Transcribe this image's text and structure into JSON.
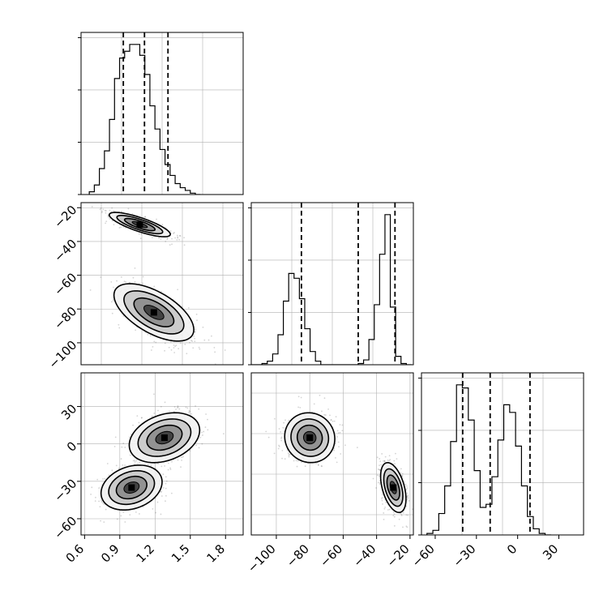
{
  "chart_data": [
    {
      "type": "histogram",
      "panel": "row0-col0",
      "x_param": 1,
      "xlim": [
        0.57,
        1.95
      ],
      "quantiles": [
        0.93,
        1.11,
        1.31
      ],
      "bin_start": 0.64,
      "bin_width": 0.043,
      "counts": [
        2,
        7,
        19,
        32,
        55,
        85,
        100,
        105,
        110,
        110,
        102,
        88,
        65,
        48,
        33,
        22,
        14,
        8,
        5,
        3,
        1,
        0
      ],
      "xticks": [],
      "yticks": []
    },
    {
      "type": "histogram",
      "panel": "row1-col1",
      "x_param": 2,
      "xlim": [
        -115,
        -18
      ],
      "quantiles": [
        -85,
        -51,
        -29
      ],
      "bin_start": -115,
      "bin_width": 3.2,
      "counts": [
        0,
        0,
        1,
        3,
        9,
        25,
        53,
        76,
        72,
        55,
        30,
        11,
        3,
        0,
        0,
        0,
        0,
        0,
        0,
        0,
        1,
        4,
        21,
        50,
        92,
        125,
        48,
        7,
        1,
        0
      ],
      "xticks": [],
      "yticks": []
    },
    {
      "type": "histogram",
      "panel": "row2-col2",
      "x_param": 3,
      "xlim": [
        -70,
        48
      ],
      "quantiles": [
        -40,
        -20,
        9
      ],
      "bin_start": -66,
      "bin_width": 4.3,
      "counts": [
        1,
        3,
        14,
        32,
        61,
        98,
        96,
        75,
        42,
        18,
        20,
        38,
        62,
        85,
        80,
        58,
        32,
        12,
        4,
        1,
        0
      ],
      "xticks": [
        -60,
        -30,
        0,
        30
      ],
      "yticks": []
    },
    {
      "type": "scatter-density",
      "panel": "row1-col0",
      "x_param": 1,
      "y_param": 2,
      "xlim": [
        0.57,
        1.95
      ],
      "ylim": [
        -113,
        -17
      ],
      "xticks": [],
      "yticks": [
        -20,
        -40,
        -60,
        -80,
        -100
      ],
      "modes": [
        {
          "mx": 1.07,
          "my": -30,
          "sx": 0.13,
          "sy": 3.6,
          "rho": -0.8,
          "weight": 0.5
        },
        {
          "mx": 1.19,
          "my": -82,
          "sx": 0.17,
          "sy": 8.5,
          "rho": -0.6,
          "weight": 0.5
        }
      ]
    },
    {
      "type": "scatter-density",
      "panel": "row2-col0",
      "x_param": 1,
      "y_param": 3,
      "xlim": [
        0.57,
        1.95
      ],
      "ylim": [
        -73,
        57
      ],
      "xticks": [
        0.6,
        0.9,
        1.2,
        1.5,
        1.8
      ],
      "yticks": [
        30,
        0,
        -30,
        -60
      ],
      "modes": [
        {
          "mx": 1.0,
          "my": -35,
          "sx": 0.13,
          "sy": 9,
          "rho": 0.25,
          "weight": 0.5
        },
        {
          "mx": 1.28,
          "my": 5,
          "sx": 0.15,
          "sy": 10,
          "rho": 0.3,
          "weight": 0.5
        }
      ]
    },
    {
      "type": "scatter-density",
      "panel": "row2-col1",
      "x_param": 2,
      "y_param": 3,
      "xlim": [
        -115,
        -18
      ],
      "ylim": [
        -73,
        57
      ],
      "xticks": [
        -100,
        -80,
        -60,
        -40,
        -20
      ],
      "yticks": [],
      "modes": [
        {
          "mx": -80,
          "my": 5,
          "sx": 7.5,
          "sy": 10,
          "rho": -0.05,
          "weight": 0.5
        },
        {
          "mx": -30,
          "my": -35,
          "sx": 3.8,
          "sy": 10,
          "rho": -0.45,
          "weight": 0.5
        }
      ]
    }
  ]
}
